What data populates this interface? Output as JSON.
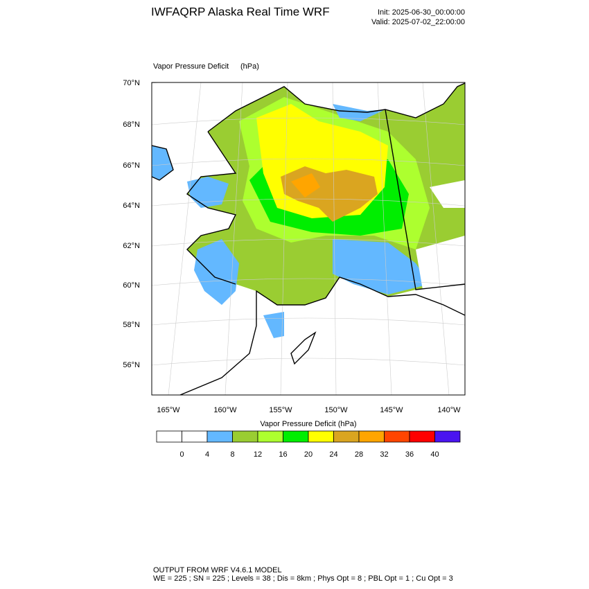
{
  "header": {
    "title": "IWFAQRP Alaska Real Time WRF",
    "init": "Init: 2025-06-30_00:00:00",
    "valid": "Valid: 2025-07-02_22:00:00"
  },
  "map": {
    "field_label": "Vapor Pressure Deficit",
    "units": "(hPa)",
    "lat_labels": [
      "70°N",
      "68°N",
      "66°N",
      "64°N",
      "62°N",
      "60°N",
      "58°N",
      "56°N"
    ],
    "lon_labels": [
      "165°W",
      "160°W",
      "155°W",
      "150°W",
      "145°W",
      "140°W"
    ]
  },
  "colorbar": {
    "title": "Vapor Pressure Deficit  (hPa)",
    "levels": [
      0,
      4,
      8,
      12,
      16,
      20,
      24,
      28,
      32,
      36,
      40
    ],
    "colors": [
      "#ffffff",
      "#ffffff",
      "#63b8ff",
      "#9acd32",
      "#adff2f",
      "#00ee00",
      "#ffff00",
      "#daa520",
      "#ffa500",
      "#ff4500",
      "#ff0000",
      "#4a14f0"
    ]
  },
  "footer": {
    "line1": "OUTPUT FROM WRF V4.6.1 MODEL",
    "line2": "WE = 225 ; SN = 225 ; Levels = 38 ; Dis = 8km ; Phys Opt = 8 ; PBL Opt = 1 ; Cu Opt = 3"
  }
}
